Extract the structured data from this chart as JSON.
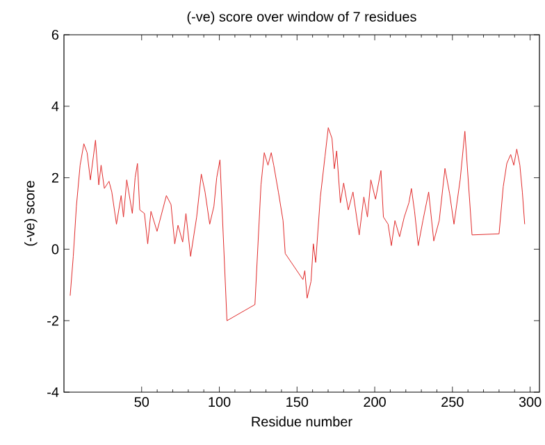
{
  "chart_data": {
    "type": "line",
    "title": "(-ve) score over window of 7 residues",
    "xlabel": "Residue number",
    "ylabel": "(-ve) score",
    "xlim": [
      0,
      306
    ],
    "ylim": [
      -4,
      6
    ],
    "xticks": [
      50,
      100,
      150,
      200,
      250,
      300
    ],
    "yticks": [
      -4,
      -2,
      0,
      2,
      4,
      6
    ],
    "grid": false,
    "marker": "none",
    "line_style": "solid",
    "series": [
      {
        "color": "#e02828",
        "x": [
          4,
          6,
          8,
          10.4,
          12.8,
          14.9,
          17,
          20.3,
          22.4,
          23.9,
          26,
          29,
          30.8,
          33.8,
          36.8,
          38.3,
          40.4,
          44,
          45.8,
          47.3,
          48.8,
          51.8,
          53.9,
          56,
          59.9,
          65.9,
          68.9,
          71.3,
          73.4,
          76.4,
          78.5,
          81.5,
          85.4,
          88.4,
          90.8,
          93.8,
          96.5,
          98.3,
          100.4,
          104.9,
          122.9,
          126.8,
          128.9,
          131.3,
          133.4,
          135,
          138,
          141,
          142.4,
          153.8,
          155,
          156.5,
          159,
          160.5,
          162,
          165,
          168,
          170.1,
          172.5,
          174,
          175.5,
          177.9,
          180,
          183,
          186,
          190,
          193,
          195.3,
          197.5,
          200.5,
          204,
          205.6,
          208.6,
          210.7,
          213,
          216,
          219,
          222,
          223.6,
          225.6,
          228,
          231,
          234.7,
          238,
          241.5,
          245.2,
          248.2,
          251,
          255,
          258,
          262.6,
          280,
          282.7,
          285,
          287.5,
          289.5,
          291.4,
          293.4,
          295,
          296.5
        ],
        "values": [
          -1.3,
          -0.2,
          1.2,
          2.35,
          2.95,
          2.7,
          1.94,
          3.05,
          1.8,
          2.35,
          1.7,
          1.9,
          1.6,
          0.7,
          1.5,
          0.9,
          1.94,
          1.0,
          2.0,
          2.4,
          1.1,
          1.0,
          0.15,
          1.06,
          0.5,
          1.5,
          1.25,
          0.15,
          0.67,
          0.2,
          1.0,
          -0.2,
          0.9,
          2.1,
          1.6,
          0.7,
          1.2,
          2.0,
          2.5,
          -2.0,
          -1.55,
          1.8,
          2.7,
          2.35,
          2.7,
          2.35,
          1.6,
          0.8,
          -0.12,
          -0.85,
          -0.6,
          -1.37,
          -0.9,
          0.15,
          -0.37,
          1.46,
          2.6,
          3.4,
          3.1,
          2.25,
          2.75,
          1.3,
          1.85,
          1.1,
          1.6,
          0.4,
          1.46,
          0.9,
          1.94,
          1.4,
          2.2,
          0.9,
          0.7,
          0.1,
          0.8,
          0.35,
          0.9,
          1.3,
          1.7,
          1.07,
          0.1,
          0.8,
          1.6,
          0.23,
          0.8,
          2.26,
          1.55,
          0.7,
          1.95,
          3.3,
          0.4,
          0.43,
          1.75,
          2.4,
          2.65,
          2.35,
          2.8,
          2.35,
          1.6,
          0.7
        ]
      }
    ]
  }
}
